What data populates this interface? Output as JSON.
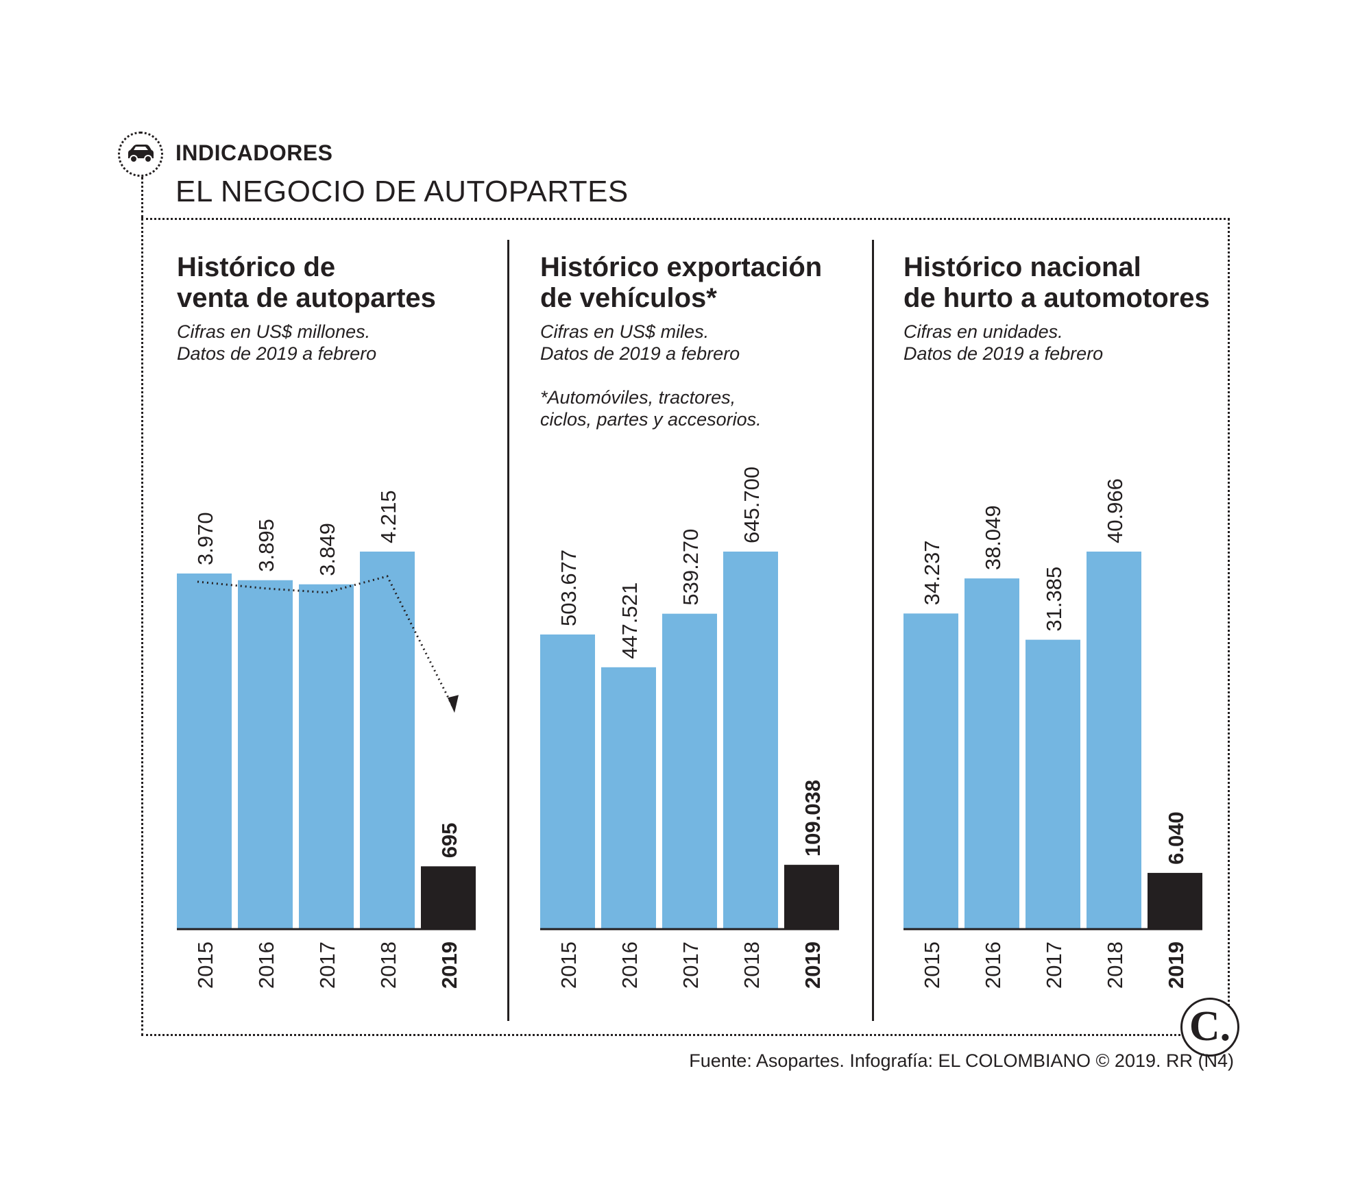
{
  "header": {
    "icon": "car-icon",
    "kicker": "INDICADORES",
    "title": "EL NEGOCIO DE AUTOPARTES"
  },
  "colors": {
    "bar": "#74b6e1",
    "highlight": "#231f20",
    "text": "#231f20"
  },
  "chart_data": [
    {
      "type": "bar",
      "title": "Histórico de\nventa de autopartes",
      "subtitle": "Cifras en US$ millones.\nDatos de 2019 a febrero",
      "note": "",
      "categories": [
        "2015",
        "2016",
        "2017",
        "2018",
        "2019"
      ],
      "values": [
        3970,
        3895,
        3849,
        4215,
        695
      ],
      "labels": [
        "3.970",
        "3.895",
        "3.849",
        "4.215",
        "695"
      ],
      "highlight": "2019",
      "ylim": [
        0,
        4215
      ],
      "trend_arrow": true
    },
    {
      "type": "bar",
      "title": "Histórico exportación\nde vehículos*",
      "subtitle": "Cifras en US$ miles.\nDatos de 2019 a febrero",
      "note": "*Automóviles, tractores,\nciclos, partes y accesorios.",
      "categories": [
        "2015",
        "2016",
        "2017",
        "2018",
        "2019"
      ],
      "values": [
        503677,
        447521,
        539270,
        645700,
        109038
      ],
      "labels": [
        "503.677",
        "447.521",
        "539.270",
        "645.700",
        "109.038"
      ],
      "highlight": "2019",
      "ylim": [
        0,
        645700
      ],
      "trend_arrow": false
    },
    {
      "type": "bar",
      "title": "Histórico nacional\nde hurto a automotores",
      "subtitle": "Cifras en unidades.\nDatos de 2019 a febrero",
      "note": "",
      "categories": [
        "2015",
        "2016",
        "2017",
        "2018",
        "2019"
      ],
      "values": [
        34237,
        38049,
        31385,
        40966,
        6040
      ],
      "labels": [
        "34.237",
        "38.049",
        "31.385",
        "40.966",
        "6.040"
      ],
      "highlight": "2019",
      "ylim": [
        0,
        40966
      ],
      "trend_arrow": false
    }
  ],
  "logo": {
    "text": "C."
  },
  "footer": {
    "credit": "Fuente: Asopartes. Infografía: EL COLOMBIANO © 2019. RR (N4)"
  }
}
